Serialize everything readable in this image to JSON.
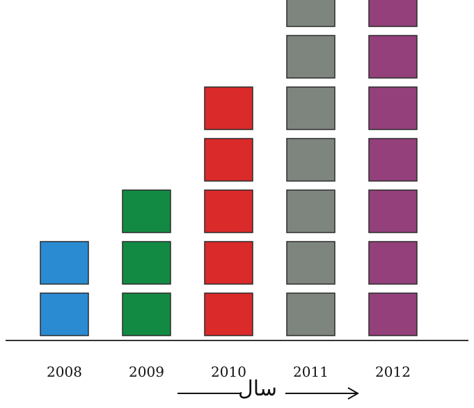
{
  "chart_data": {
    "type": "bar",
    "categories": [
      "2008",
      "2009",
      "2010",
      "2011",
      "2012"
    ],
    "values": [
      2,
      3,
      5,
      7,
      7
    ],
    "series_colors": [
      "#2a8bd3",
      "#138a43",
      "#da2a2a",
      "#7e857e",
      "#93407b"
    ],
    "xlabel": "سال",
    "title": "",
    "ylabel": "",
    "ylim": [
      0,
      7
    ],
    "grid": false,
    "legend": "none"
  }
}
